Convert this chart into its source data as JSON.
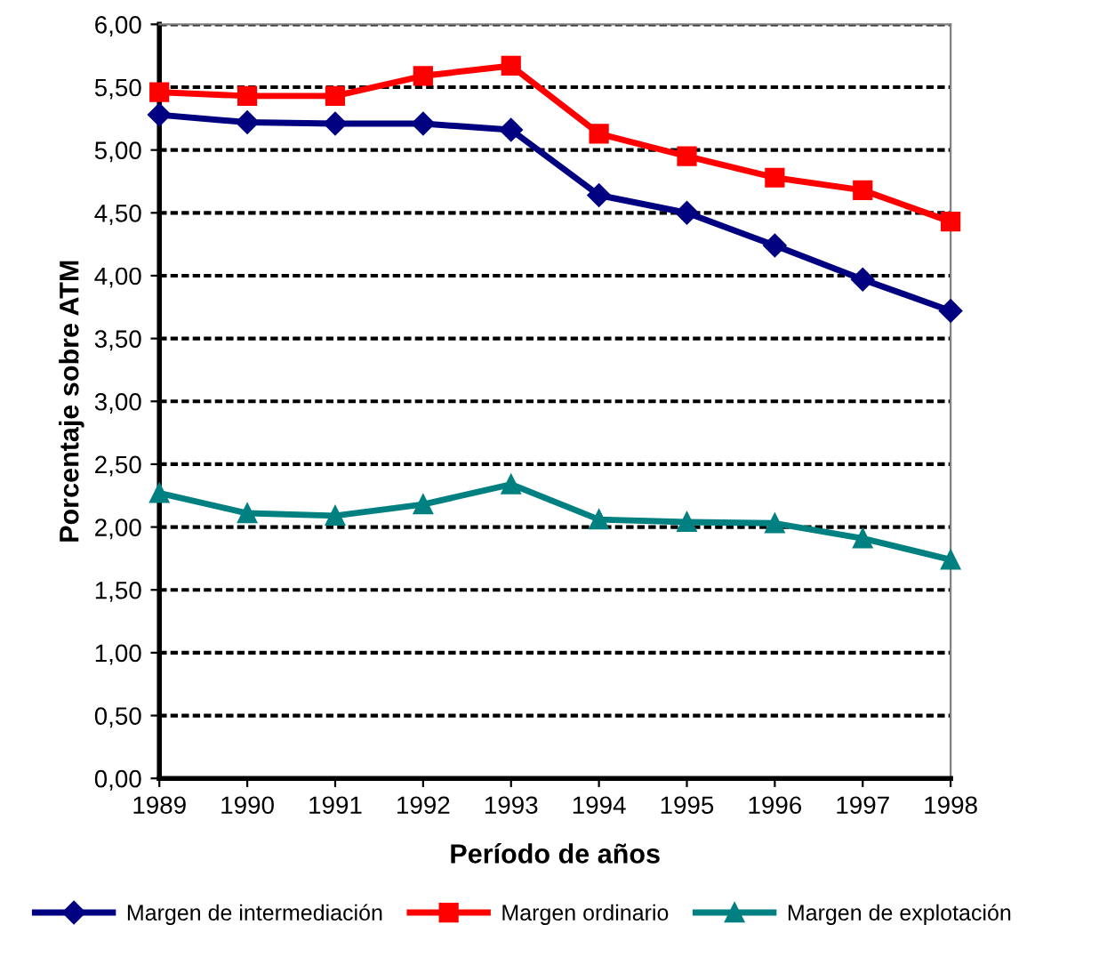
{
  "chart_data": {
    "type": "line",
    "xlabel": "Período de años",
    "ylabel": "Porcentaje sobre ATM",
    "categories": [
      "1989",
      "1990",
      "1991",
      "1992",
      "1993",
      "1994",
      "1995",
      "1996",
      "1997",
      "1998"
    ],
    "series": [
      {
        "name": "Margen de intermediación",
        "color": "#000080",
        "marker": "diamond",
        "values": [
          5.28,
          5.22,
          5.21,
          5.21,
          5.16,
          4.64,
          4.5,
          4.24,
          3.97,
          3.72
        ]
      },
      {
        "name": "Margen ordinario",
        "color": "#ff0000",
        "marker": "square",
        "values": [
          5.46,
          5.43,
          5.43,
          5.59,
          5.67,
          5.13,
          4.95,
          4.78,
          4.68,
          4.43
        ]
      },
      {
        "name": "Margen de explotación",
        "color": "#008080",
        "marker": "triangle",
        "values": [
          2.27,
          2.11,
          2.09,
          2.18,
          2.34,
          2.06,
          2.04,
          2.03,
          1.91,
          1.74
        ]
      }
    ],
    "ylim": [
      0,
      6
    ],
    "yticks": [
      {
        "value": 0,
        "label": "0,00"
      },
      {
        "value": 0.5,
        "label": "0,50"
      },
      {
        "value": 1,
        "label": "1,00"
      },
      {
        "value": 1.5,
        "label": "1,50"
      },
      {
        "value": 2,
        "label": "2,00"
      },
      {
        "value": 2.5,
        "label": "2,50"
      },
      {
        "value": 3,
        "label": "3,00"
      },
      {
        "value": 3.5,
        "label": "3,50"
      },
      {
        "value": 4,
        "label": "4,00"
      },
      {
        "value": 4.5,
        "label": "4,50"
      },
      {
        "value": 5,
        "label": "5,00"
      },
      {
        "value": 5.5,
        "label": "5,50"
      },
      {
        "value": 6,
        "label": "6,00"
      }
    ],
    "grid": "y",
    "legend": "bottom",
    "line_style": "solid"
  }
}
